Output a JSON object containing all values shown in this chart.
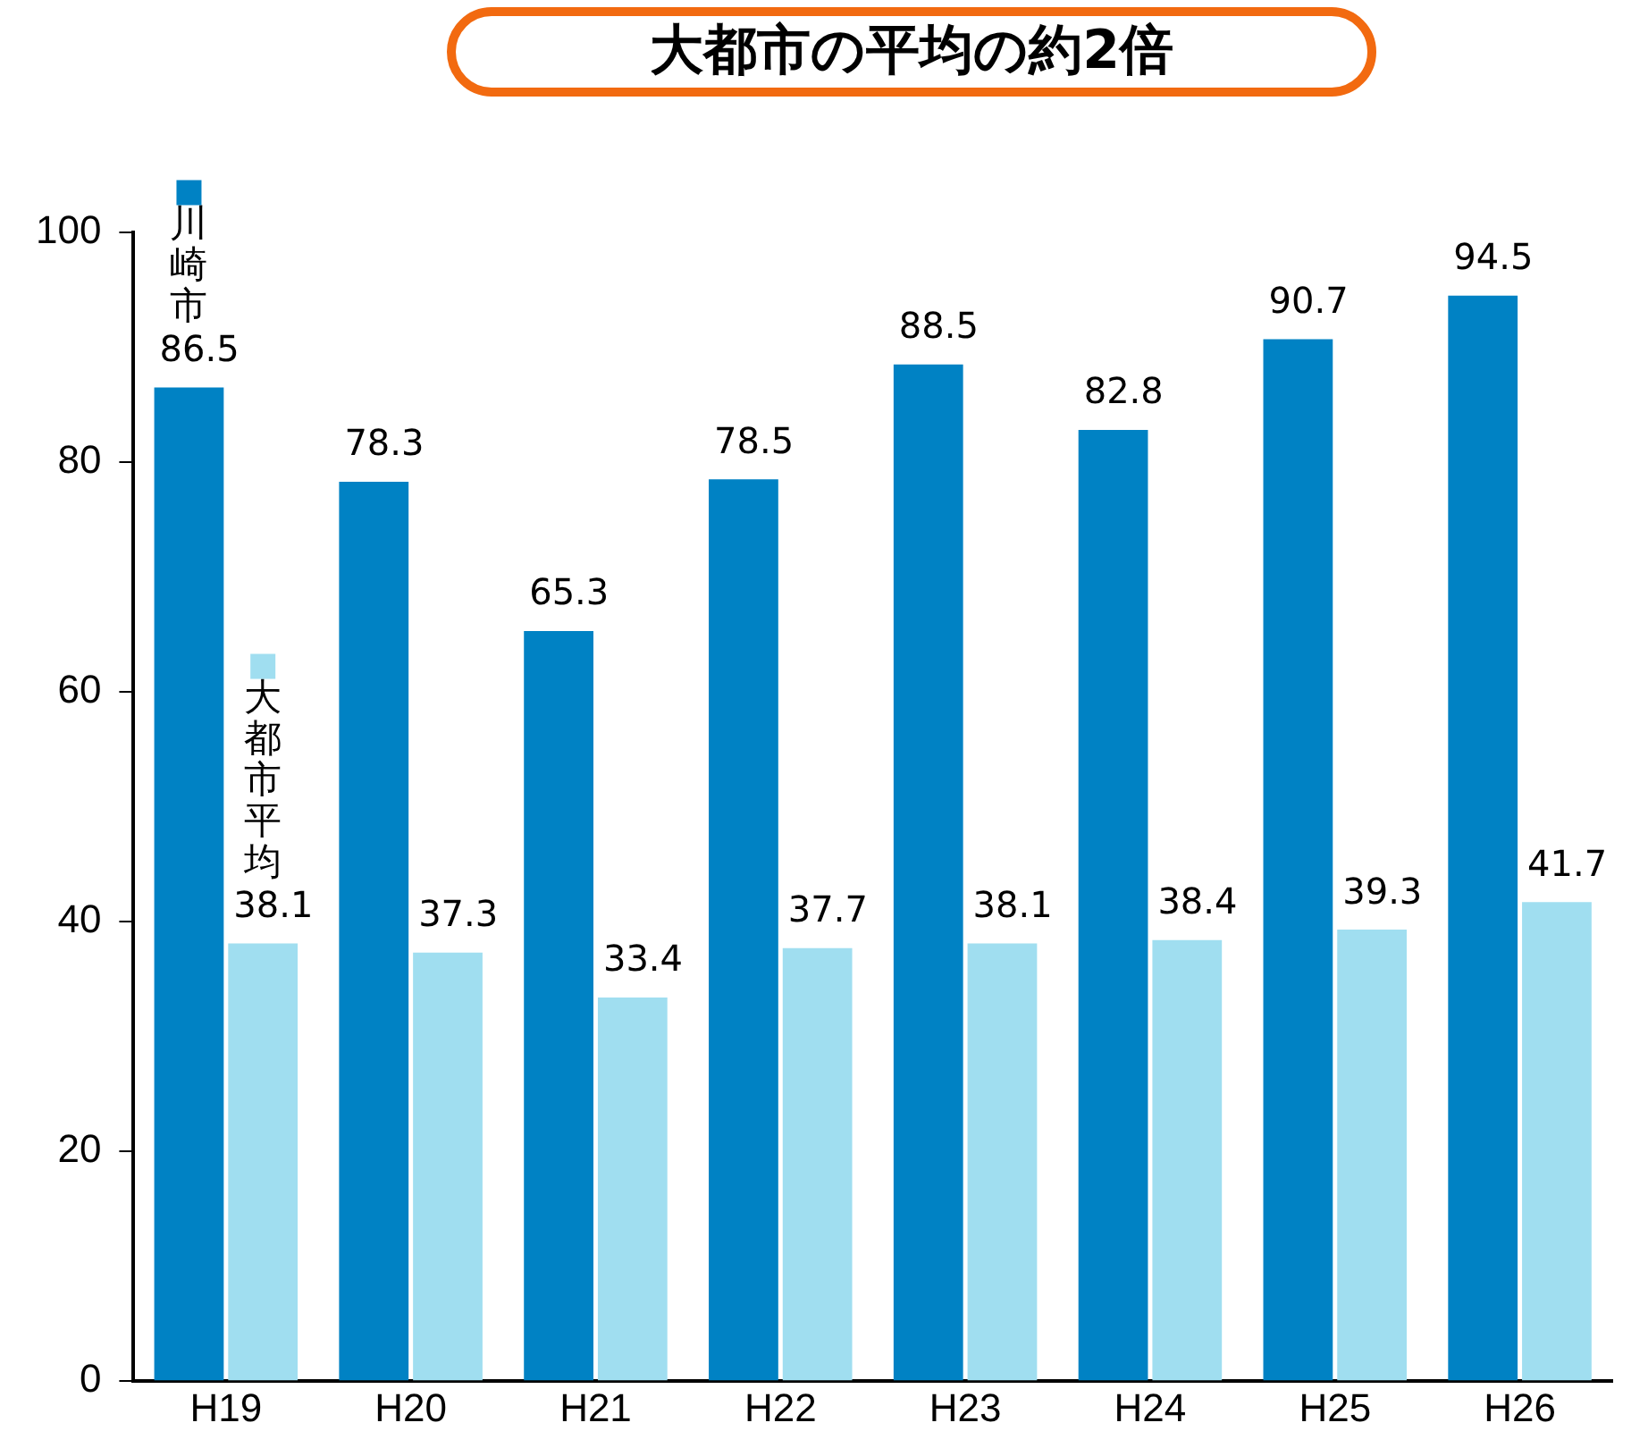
{
  "chart_data": {
    "type": "bar",
    "annotations": [
      "大都市の平均の約2倍"
    ],
    "categories": [
      "H19",
      "H20",
      "H21",
      "H22",
      "H23",
      "H24",
      "H25",
      "H26"
    ],
    "series": [
      {
        "name": "川崎市",
        "color": "#0082c4",
        "values": [
          86.5,
          78.3,
          65.3,
          78.5,
          88.5,
          82.8,
          90.7,
          94.5
        ]
      },
      {
        "name": "大都市平均",
        "color": "#a0def0",
        "values": [
          38.1,
          37.3,
          33.4,
          37.7,
          38.1,
          38.4,
          39.3,
          41.7
        ]
      }
    ],
    "ylim": [
      0,
      100
    ],
    "yticks": [
      0,
      20,
      40,
      60,
      80,
      100
    ],
    "grid": false,
    "legend": "top left",
    "data_labels": true
  }
}
